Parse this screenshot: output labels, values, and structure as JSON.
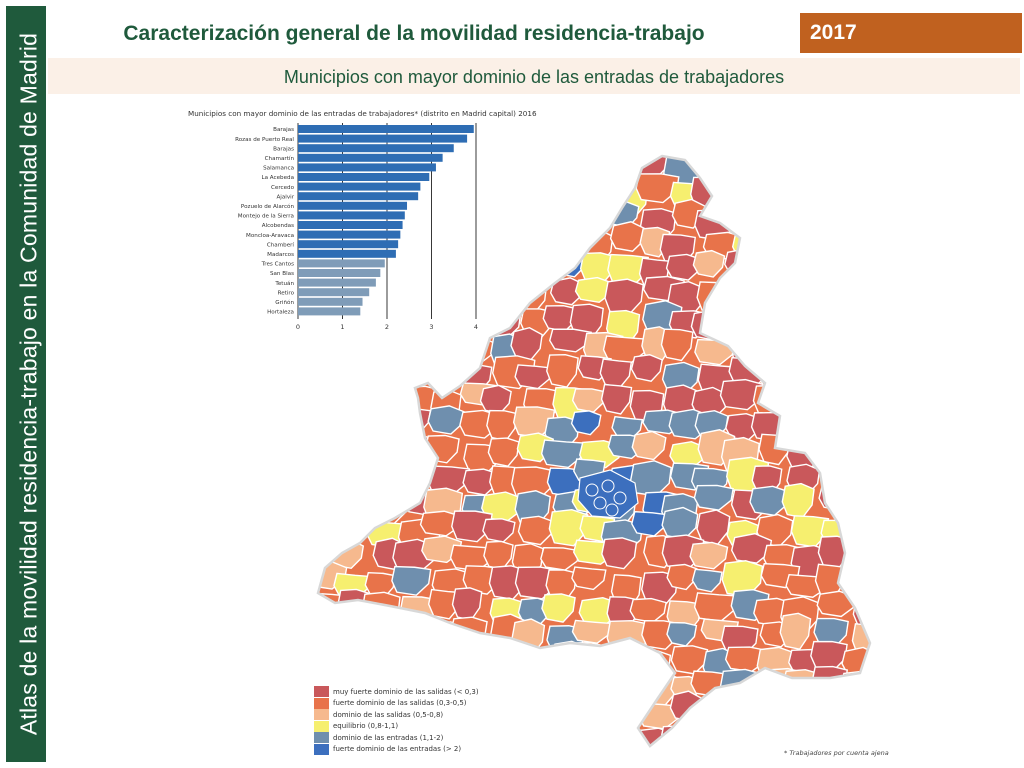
{
  "sidebar": {
    "text": "Atlas de la movilidad residencia-trabajo en la Comunidad de Madrid"
  },
  "header": {
    "title": "Caracterización general de la movilidad residencia-trabajo",
    "year": "2017",
    "subtitle": "Municipios con mayor dominio de las entradas de trabajadores"
  },
  "chart_data": {
    "type": "bar",
    "orientation": "horizontal",
    "title": "Municipios con mayor dominio de las entradas de trabajadores* (distrito en Madrid capital) 2016",
    "categories": [
      "Barajas",
      "Rozas de Puerto Real",
      "Barajas",
      "Chamartín",
      "Salamanca",
      "La Acebeda",
      "Cercedo",
      "Ajalvir",
      "Pozuelo de Alarcón",
      "Montejo de la Sierra",
      "Alcobendas",
      "Moncloa-Aravaca",
      "Chamberí",
      "Madarcos",
      "Tres Cantos",
      "San Blas",
      "Tetuán",
      "Retiro",
      "Griñón",
      "Hortaleza"
    ],
    "values": [
      3.95,
      3.8,
      3.5,
      3.25,
      3.1,
      2.95,
      2.75,
      2.7,
      2.45,
      2.4,
      2.35,
      2.3,
      2.25,
      2.2,
      1.95,
      1.85,
      1.75,
      1.6,
      1.45,
      1.4
    ],
    "colors": [
      "#2e6db4",
      "#2e6db4",
      "#2e6db4",
      "#2e6db4",
      "#2e6db4",
      "#2e6db4",
      "#2e6db4",
      "#2e6db4",
      "#2e6db4",
      "#2e6db4",
      "#2e6db4",
      "#2e6db4",
      "#2e6db4",
      "#2e6db4",
      "#7f9cb8",
      "#7f9cb8",
      "#7f9cb8",
      "#7f9cb8",
      "#7f9cb8",
      "#7f9cb8"
    ],
    "xlim": [
      0,
      4
    ],
    "xticks": [
      "0",
      "1",
      "2",
      "3",
      "4"
    ],
    "grid": true
  },
  "map": {
    "palette": {
      "muy_fuerte_salidas": "#c9585b",
      "fuerte_salidas": "#e8734a",
      "dominio_salidas": "#f6b98e",
      "equilibrio": "#f6ef6f",
      "dominio_entradas": "#6f8fae",
      "fuerte_entradas": "#3c6fbe"
    },
    "legend": [
      {
        "label": "muy fuerte dominio de las salidas (< 0,3)",
        "color": "#c9585b"
      },
      {
        "label": "fuerte dominio de las salidas (0,3-0,5)",
        "color": "#e8734a"
      },
      {
        "label": "dominio de las salidas (0,5-0,8)",
        "color": "#f6b98e"
      },
      {
        "label": "equilibrio (0,8-1,1)",
        "color": "#f6ef6f"
      },
      {
        "label": "dominio de las entradas (1,1-2)",
        "color": "#6f8fae"
      },
      {
        "label": "fuerte dominio de las entradas (> 2)",
        "color": "#3c6fbe"
      }
    ],
    "footnote": "* Trabajadores por cuenta ajena"
  }
}
